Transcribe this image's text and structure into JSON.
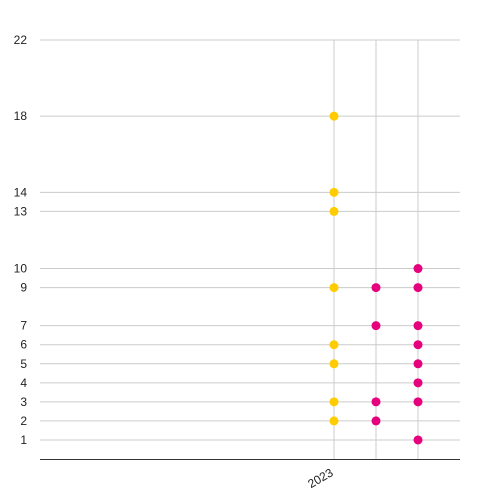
{
  "chart_data": {
    "type": "scatter",
    "title": "",
    "xlabel": "",
    "ylabel": "",
    "y_ticks": [
      1,
      2,
      3,
      4,
      5,
      6,
      7,
      9,
      10,
      13,
      14,
      18,
      22
    ],
    "ylim": [
      0,
      22
    ],
    "x_tick_labels": [
      {
        "label": "2023",
        "x": 0
      }
    ],
    "x_gridlines": [
      0,
      1,
      2
    ],
    "xlim": [
      -7,
      3
    ],
    "grid": true,
    "legend": "none",
    "series": [
      {
        "color": "#FFCC00",
        "points": [
          {
            "x": 0,
            "y": 18
          },
          {
            "x": 0,
            "y": 14
          },
          {
            "x": 0,
            "y": 13
          },
          {
            "x": 0,
            "y": 9
          },
          {
            "x": 0,
            "y": 6
          },
          {
            "x": 0,
            "y": 5
          },
          {
            "x": 0,
            "y": 3
          },
          {
            "x": 0,
            "y": 2
          }
        ]
      },
      {
        "color": "#E6007E",
        "points": [
          {
            "x": 1,
            "y": 9
          },
          {
            "x": 1,
            "y": 7
          },
          {
            "x": 1,
            "y": 3
          },
          {
            "x": 1,
            "y": 2
          },
          {
            "x": 2,
            "y": 10
          },
          {
            "x": 2,
            "y": 9
          },
          {
            "x": 2,
            "y": 7
          },
          {
            "x": 2,
            "y": 6
          },
          {
            "x": 2,
            "y": 5
          },
          {
            "x": 2,
            "y": 4
          },
          {
            "x": 2,
            "y": 3
          },
          {
            "x": 2,
            "y": 1
          }
        ]
      }
    ]
  }
}
